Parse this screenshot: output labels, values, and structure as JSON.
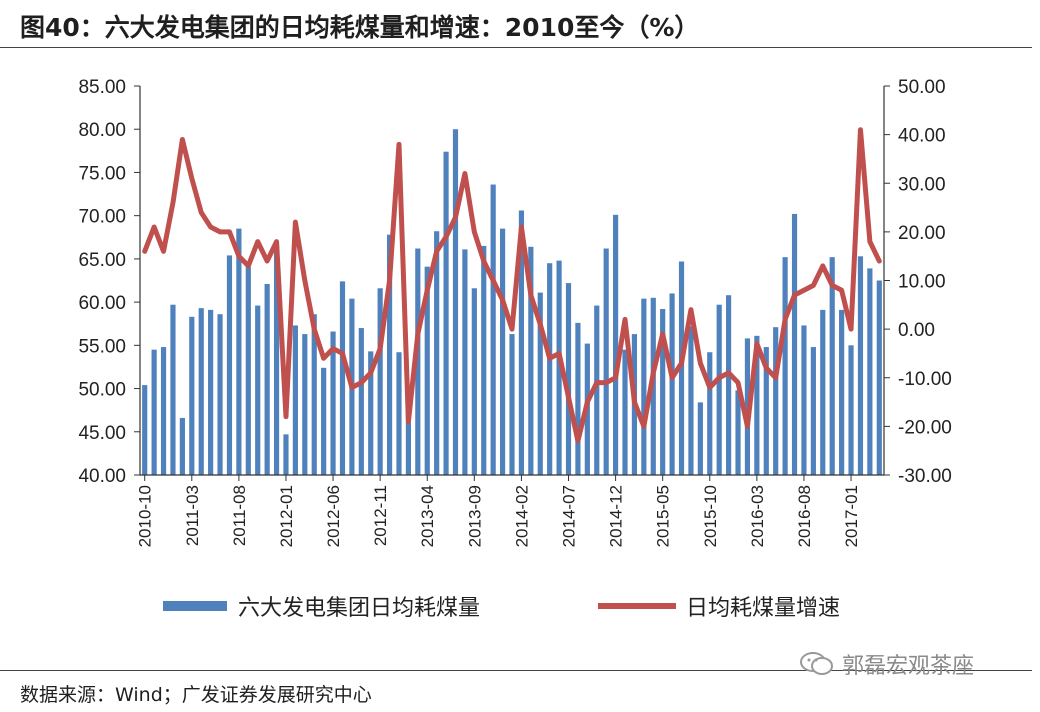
{
  "title": "图40：六大发电集团的日均耗煤量和增速：2010至今（%）",
  "source": "数据来源：Wind；广发证券发展研究中心",
  "watermark": "郭磊宏观茶座",
  "chart_data": {
    "type": "bar+line",
    "categories_labeled": [
      "2010-10",
      "2011-03",
      "2011-08",
      "2012-01",
      "2012-06",
      "2012-11",
      "2013-04",
      "2013-09",
      "2014-02",
      "2014-07",
      "2014-12",
      "2015-05",
      "2015-10",
      "2016-03",
      "2016-08",
      "2017-01"
    ],
    "x_start": "2010-10",
    "x_end": "2017-05",
    "left_axis": {
      "min": 40,
      "max": 85,
      "ticks": [
        "40.00",
        "45.00",
        "50.00",
        "55.00",
        "60.00",
        "65.00",
        "70.00",
        "75.00",
        "80.00",
        "85.00"
      ]
    },
    "right_axis": {
      "min": -30,
      "max": 50,
      "ticks": [
        "-30.00",
        "-20.00",
        "-10.00",
        "0.00",
        "10.00",
        "20.00",
        "30.00",
        "40.00",
        "50.00"
      ]
    },
    "colors": {
      "bar": "#4f81bd",
      "line": "#c0504d"
    },
    "series": [
      {
        "name": "六大发电集团日均耗煤量",
        "axis": "left",
        "type": "bar",
        "values": [
          50.4,
          54.5,
          54.8,
          59.7,
          46.6,
          58.3,
          59.3,
          59.1,
          58.6,
          65.4,
          68.5,
          64.1,
          59.6,
          62.1,
          66.4,
          44.7,
          57.3,
          56.3,
          58.6,
          52.4,
          56.6,
          62.4,
          60.4,
          57.0,
          54.3,
          61.6,
          67.8,
          54.2,
          48.3,
          66.2,
          64.1,
          68.2,
          77.4,
          80.0,
          66.1,
          61.6,
          66.5,
          73.6,
          68.5,
          56.3,
          70.6,
          66.4,
          61.1,
          64.5,
          64.8,
          62.2,
          57.6,
          55.2,
          59.6,
          66.2,
          70.1,
          54.5,
          56.3,
          60.4,
          60.5,
          59.2,
          61.0,
          64.7,
          57.2,
          48.4,
          54.2,
          59.7,
          60.8,
          49.8,
          55.8,
          56.1,
          54.8,
          57.1,
          65.2,
          70.2,
          57.3,
          54.8,
          59.1,
          65.2,
          59.1,
          55.0,
          65.3,
          63.9,
          62.5
        ]
      },
      {
        "name": "日均耗煤量增速",
        "axis": "right",
        "type": "line",
        "values": [
          16,
          21,
          16,
          26,
          39,
          31,
          24,
          21,
          20,
          20,
          15,
          13,
          18,
          14,
          18,
          -18,
          22,
          10,
          0,
          -6,
          -4,
          -5,
          -12,
          -11,
          -9,
          -4,
          10,
          38,
          -19,
          -1,
          8,
          16,
          19,
          23,
          32,
          20,
          14,
          10,
          6,
          0,
          21,
          7,
          1,
          -6,
          -5,
          -14,
          -23,
          -15,
          -11,
          -11,
          -10,
          2,
          -15,
          -20,
          -9,
          -1,
          -10,
          -7,
          4,
          -7,
          -12,
          -10,
          -9,
          -11,
          -20,
          -3,
          -8,
          -10,
          2,
          7,
          8,
          9,
          13,
          9,
          8,
          0,
          41,
          18,
          14
        ]
      }
    ],
    "legend_position": "bottom",
    "grid": false
  }
}
